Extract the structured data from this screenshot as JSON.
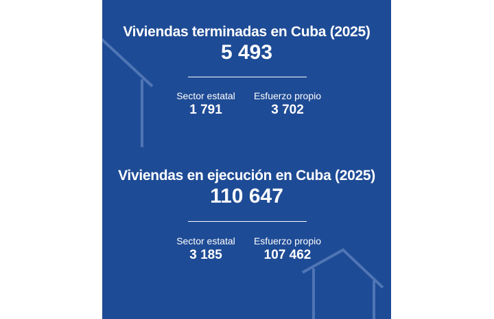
{
  "colors": {
    "panel_background": "#1e4b95",
    "text": "#ffffff",
    "house_outline": "#5b7fbd"
  },
  "decorations": {
    "top_house": "house-outline-icon",
    "bottom_house": "house-outline-icon"
  },
  "finished": {
    "title": "Viviendas terminadas en Cuba (2025)",
    "total": "5 493",
    "breakdown": [
      {
        "label": "Sector estatal",
        "value": "1 791"
      },
      {
        "label": "Esfuerzo propio",
        "value": "3 702"
      }
    ]
  },
  "in_progress": {
    "title": "Viviendas en ejecución en Cuba (2025)",
    "total": "110 647",
    "breakdown": [
      {
        "label": "Sector estatal",
        "value": "3 185"
      },
      {
        "label": "Esfuerzo propio",
        "value": "107 462"
      }
    ]
  }
}
